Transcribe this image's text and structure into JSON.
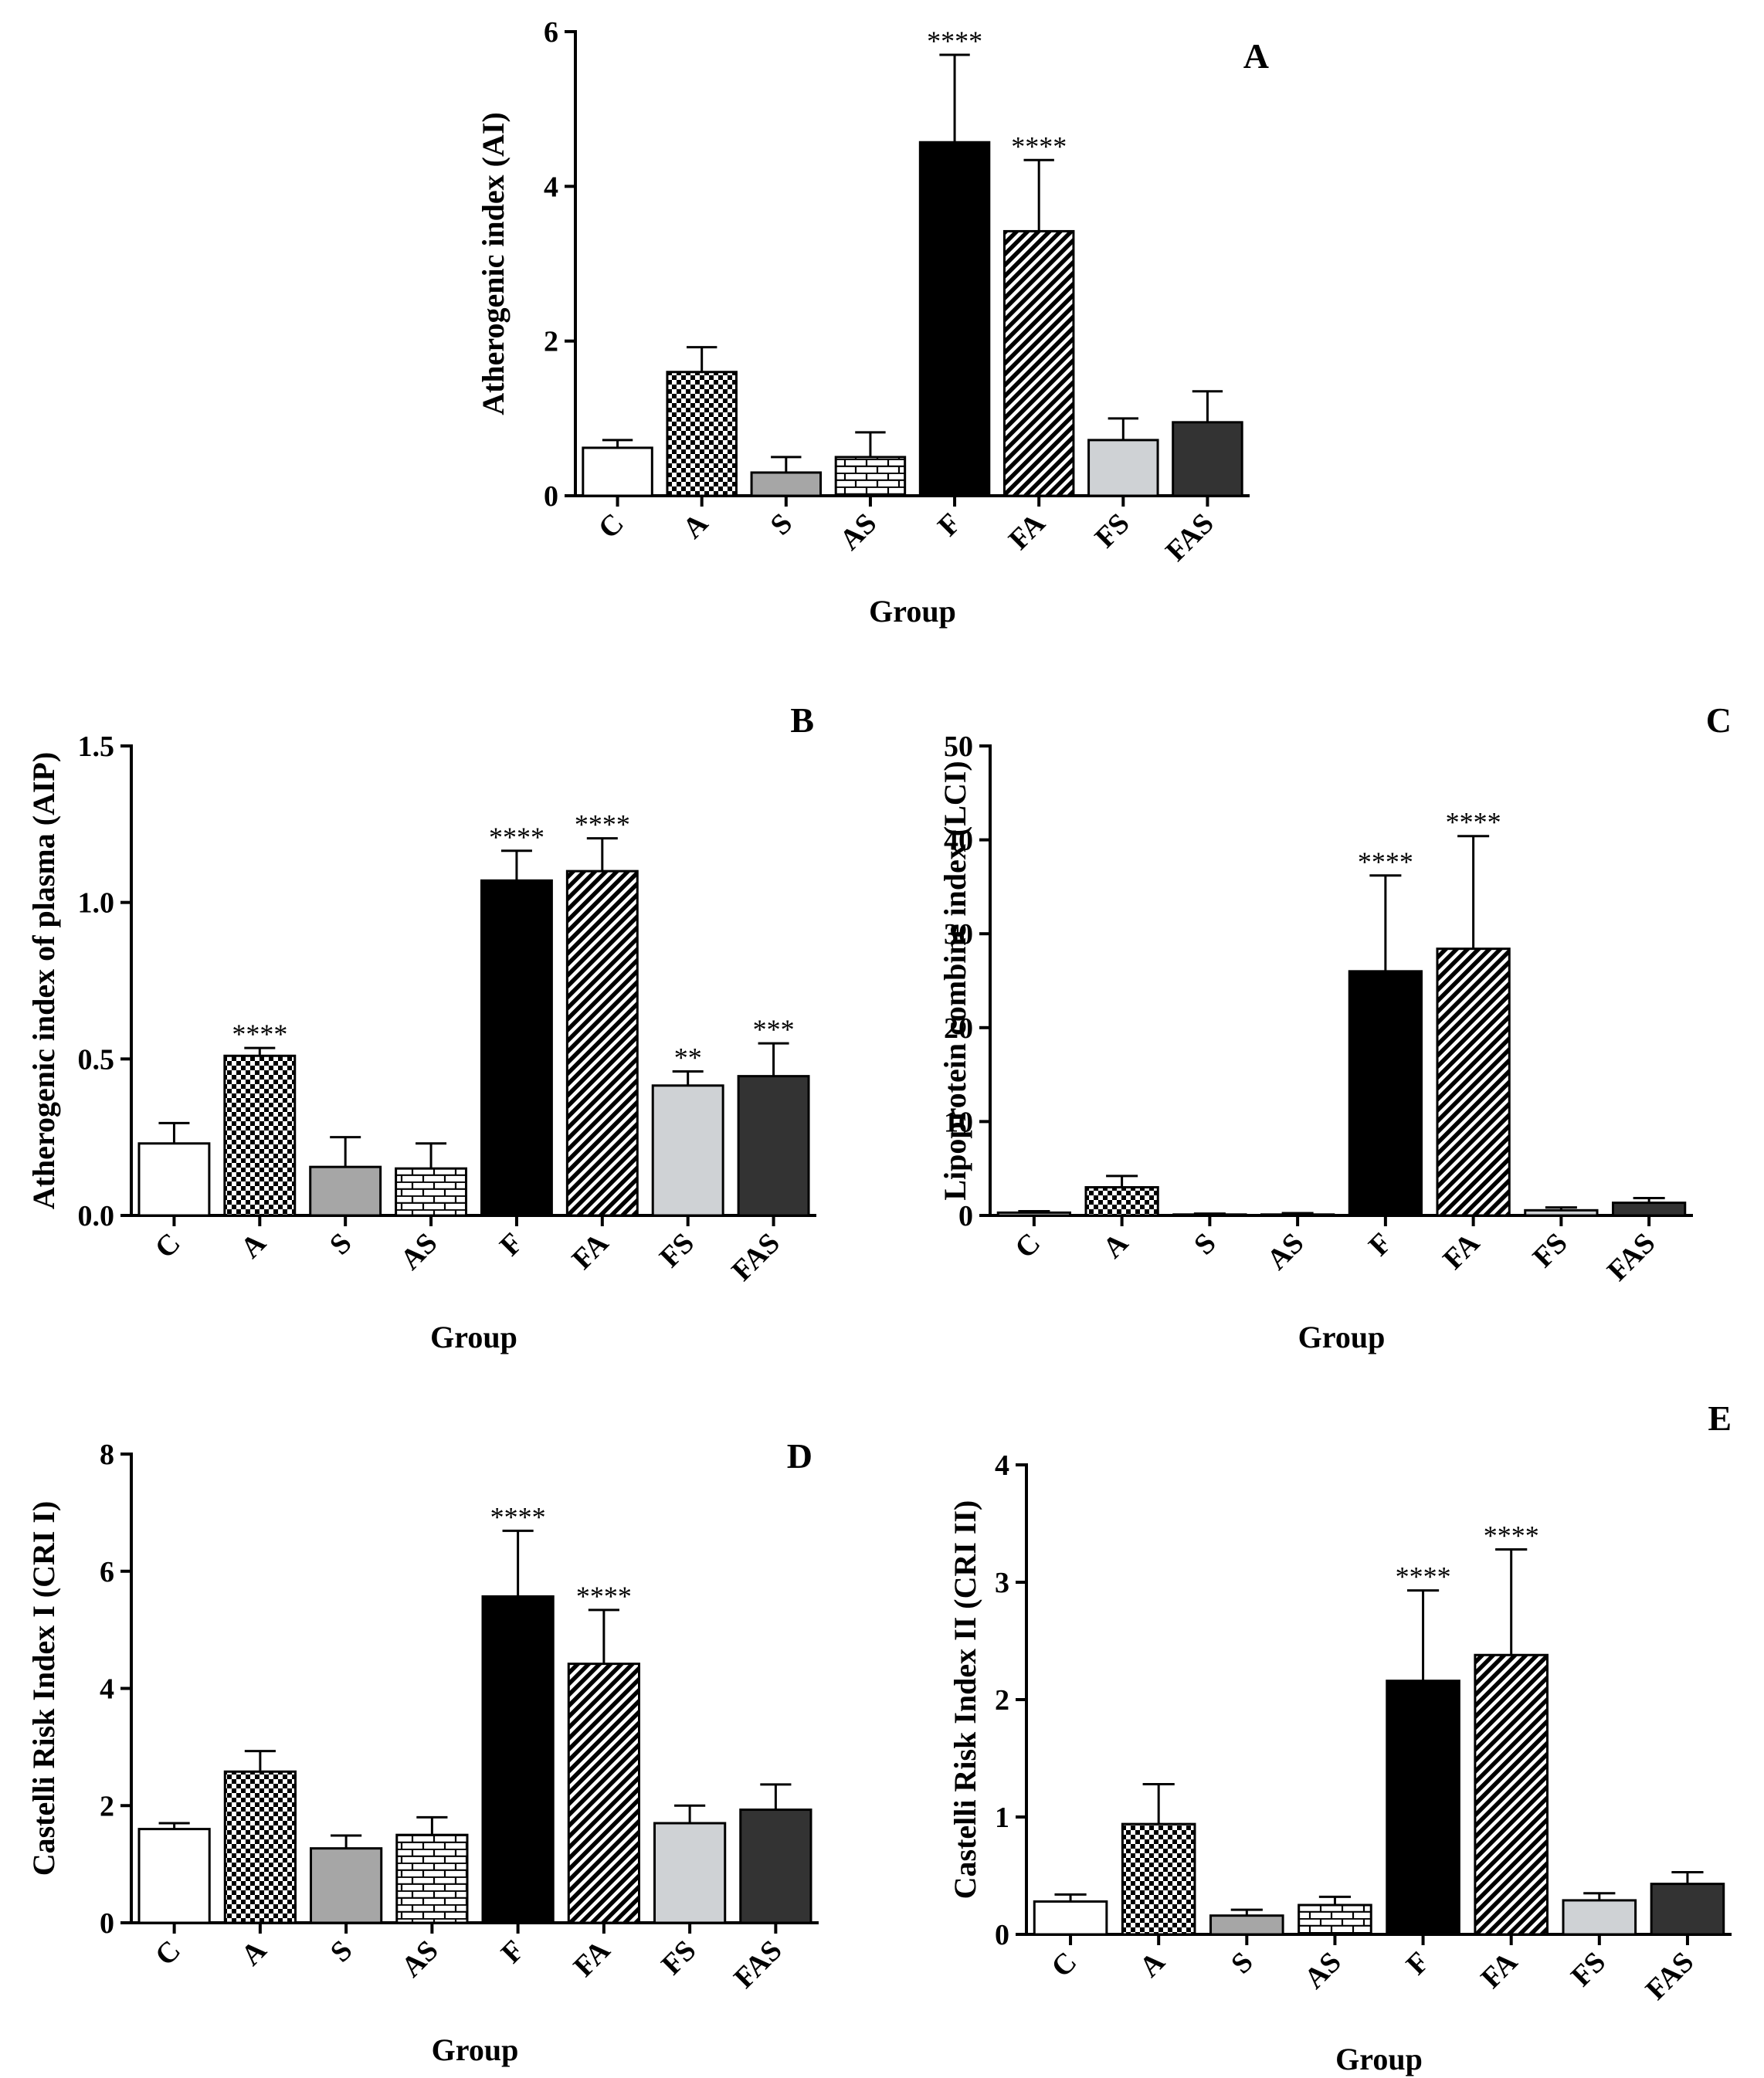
{
  "chart_data": [
    {
      "id": "A",
      "type": "bar",
      "panel_label": "A",
      "title": "",
      "xlabel": "Group",
      "ylabel": "Atherogenic index (AI)",
      "categories": [
        "C",
        "A",
        "S",
        "AS",
        "F",
        "FA",
        "FS",
        "FAS"
      ],
      "values": [
        0.62,
        1.6,
        0.3,
        0.5,
        4.57,
        3.42,
        0.72,
        0.95
      ],
      "errors": [
        0.1,
        0.32,
        0.2,
        0.32,
        1.13,
        0.92,
        0.28,
        0.4
      ],
      "significance": [
        "",
        "",
        "",
        "",
        "****",
        "****",
        "",
        ""
      ],
      "ylim": [
        0,
        6
      ],
      "yticks": [
        0,
        2,
        4,
        6
      ],
      "ytick_labels": [
        "0",
        "2",
        "4",
        "6"
      ],
      "grid": false
    },
    {
      "id": "B",
      "type": "bar",
      "panel_label": "B",
      "title": "",
      "xlabel": "Group",
      "ylabel": "Atherogenic index of plasma (AIP)",
      "categories": [
        "C",
        "A",
        "S",
        "AS",
        "F",
        "FA",
        "FS",
        "FAS"
      ],
      "values": [
        0.23,
        0.51,
        0.155,
        0.15,
        1.07,
        1.1,
        0.415,
        0.445
      ],
      "errors": [
        0.065,
        0.025,
        0.095,
        0.08,
        0.095,
        0.105,
        0.045,
        0.105
      ],
      "significance": [
        "",
        "****",
        "",
        "",
        "****",
        "****",
        "**",
        "***"
      ],
      "ylim": [
        0,
        1.5
      ],
      "yticks": [
        0,
        0.5,
        1.0,
        1.5
      ],
      "ytick_labels": [
        "0.0",
        "0.5",
        "1.0",
        "1.5"
      ],
      "grid": false
    },
    {
      "id": "C",
      "type": "bar",
      "panel_label": "C",
      "title": "",
      "xlabel": "Group",
      "ylabel": "Lipoprotein combine index (LCI)",
      "categories": [
        "C",
        "A",
        "S",
        "AS",
        "F",
        "FA",
        "FS",
        "FAS"
      ],
      "values": [
        0.3,
        3.0,
        0.1,
        0.1,
        26.0,
        28.4,
        0.55,
        1.35
      ],
      "errors": [
        0.15,
        1.2,
        0.1,
        0.15,
        10.2,
        12.0,
        0.3,
        0.5
      ],
      "significance": [
        "",
        "",
        "",
        "",
        "****",
        "****",
        "",
        ""
      ],
      "ylim": [
        0,
        50
      ],
      "yticks": [
        0,
        10,
        20,
        30,
        40,
        50
      ],
      "ytick_labels": [
        "0",
        "10",
        "20",
        "30",
        "40",
        "50"
      ],
      "grid": false
    },
    {
      "id": "D",
      "type": "bar",
      "panel_label": "D",
      "title": "",
      "xlabel": "Group",
      "ylabel": "Castelli Risk Index I (CRI I)",
      "categories": [
        "C",
        "A",
        "S",
        "AS",
        "F",
        "FA",
        "FS",
        "FAS"
      ],
      "values": [
        1.6,
        2.58,
        1.27,
        1.5,
        5.57,
        4.42,
        1.7,
        1.93
      ],
      "errors": [
        0.1,
        0.35,
        0.22,
        0.3,
        1.12,
        0.92,
        0.3,
        0.43
      ],
      "significance": [
        "",
        "",
        "",
        "",
        "****",
        "****",
        "",
        ""
      ],
      "ylim": [
        0,
        8
      ],
      "yticks": [
        0,
        2,
        4,
        6,
        8
      ],
      "ytick_labels": [
        "0",
        "2",
        "4",
        "6",
        "8"
      ],
      "grid": false
    },
    {
      "id": "E",
      "type": "bar",
      "panel_label": "E",
      "title": "",
      "xlabel": "Group",
      "ylabel": "Castelli Risk Index II (CRI II)",
      "categories": [
        "C",
        "A",
        "S",
        "AS",
        "F",
        "FA",
        "FS",
        "FAS"
      ],
      "values": [
        0.28,
        0.94,
        0.16,
        0.25,
        2.16,
        2.38,
        0.29,
        0.43
      ],
      "errors": [
        0.06,
        0.34,
        0.05,
        0.07,
        0.77,
        0.9,
        0.06,
        0.1
      ],
      "significance": [
        "",
        "",
        "",
        "",
        "****",
        "****",
        "",
        ""
      ],
      "ylim": [
        0,
        4
      ],
      "yticks": [
        0,
        1,
        2,
        3,
        4
      ],
      "ytick_labels": [
        "0",
        "1",
        "2",
        "3",
        "4"
      ],
      "grid": false
    }
  ],
  "legend_fills": {
    "C": "white",
    "A": "checker",
    "S": "#a6a6a6",
    "AS": "brick",
    "F": "#000000",
    "FA": "diagonal",
    "FS": "#cfd2d5",
    "FAS": "#333333"
  }
}
